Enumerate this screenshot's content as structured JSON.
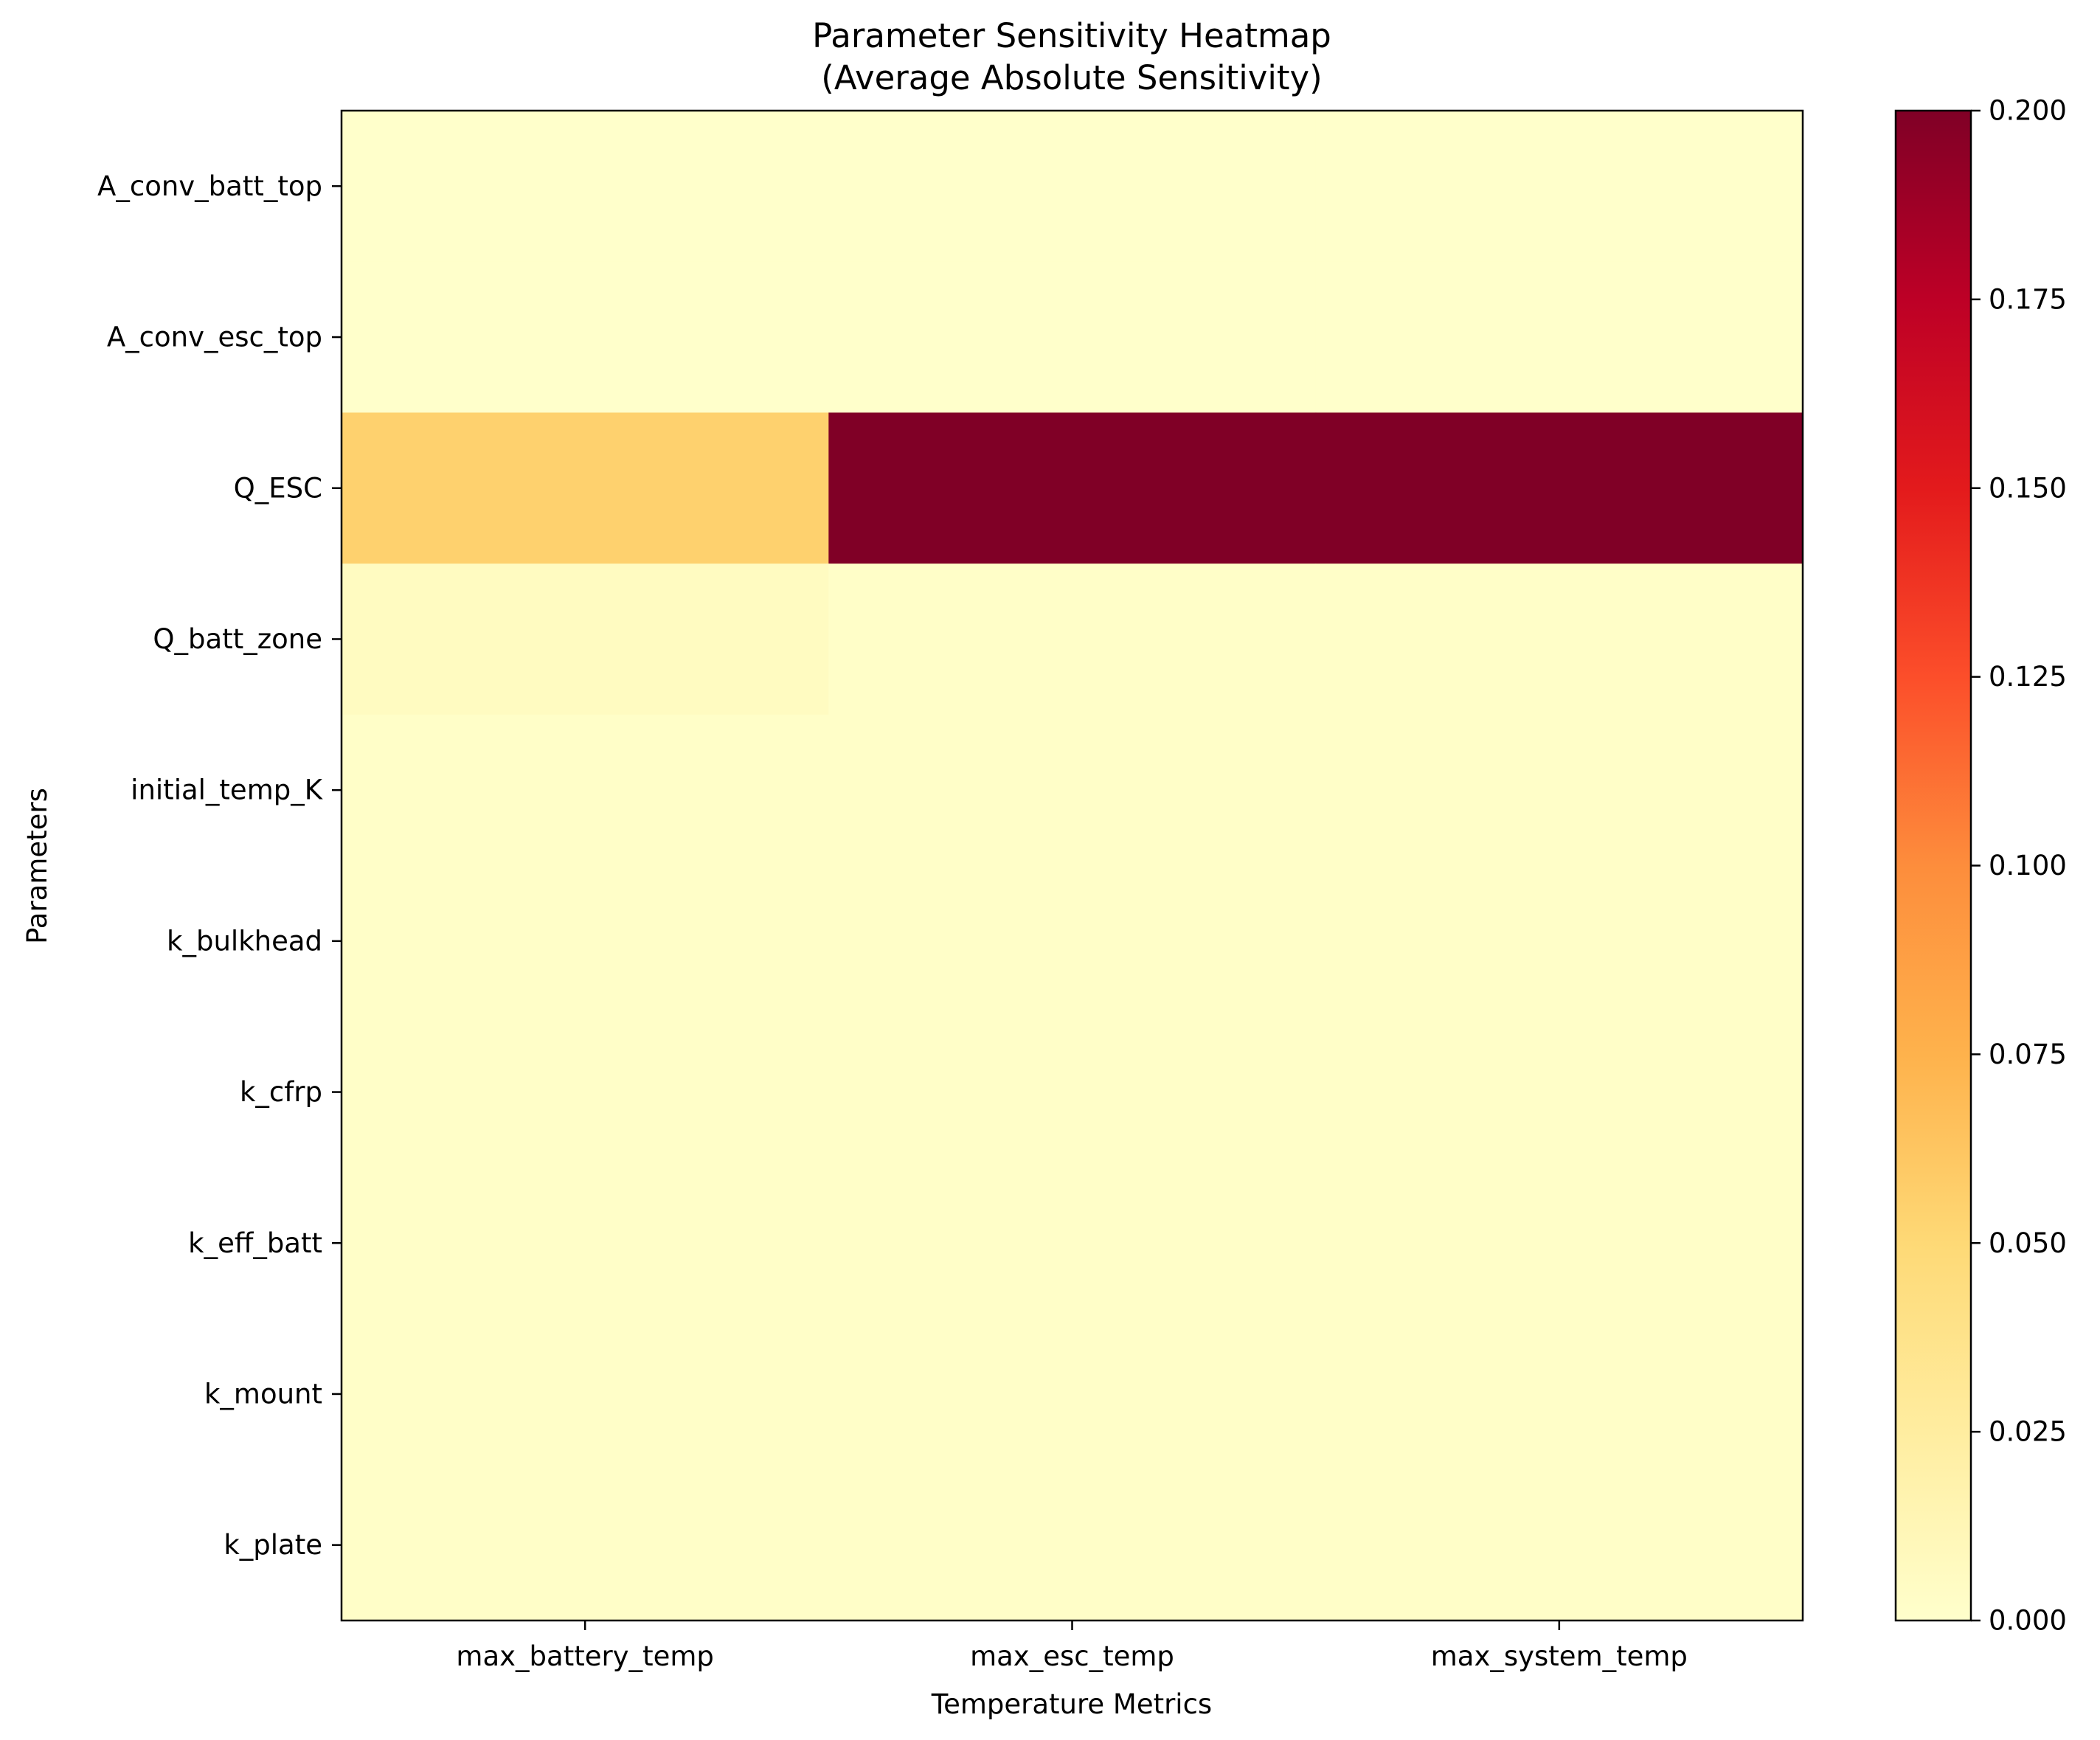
{
  "chart_data": {
    "type": "heatmap",
    "title": "Parameter Sensitivity Heatmap",
    "subtitle": "(Average Absolute Sensitivity)",
    "xlabel": "Temperature Metrics",
    "ylabel": "Parameters",
    "columns": [
      "max_battery_temp",
      "max_esc_temp",
      "max_system_temp"
    ],
    "rows": [
      "A_conv_batt_top",
      "A_conv_esc_top",
      "Q_ESC",
      "Q_batt_zone",
      "initial_temp_K",
      "k_bulkhead",
      "k_cfrp",
      "k_eff_batt",
      "k_mount",
      "k_plate"
    ],
    "values": [
      [
        0.0005,
        0.0003,
        0.0003
      ],
      [
        0.0004,
        0.0003,
        0.0003
      ],
      [
        0.055,
        0.2,
        0.2
      ],
      [
        0.006,
        0.002,
        0.002
      ],
      [
        0.002,
        0.002,
        0.002
      ],
      [
        0.002,
        0.002,
        0.002
      ],
      [
        0.002,
        0.002,
        0.002
      ],
      [
        0.002,
        0.002,
        0.002
      ],
      [
        0.002,
        0.002,
        0.002
      ],
      [
        0.002,
        0.002,
        0.002
      ]
    ],
    "colormap": "YlOrRd",
    "color_range": [
      0.0,
      0.2
    ],
    "colorbar_ticks": [
      "0.000",
      "0.025",
      "0.050",
      "0.075",
      "0.100",
      "0.125",
      "0.150",
      "0.175",
      "0.200"
    ],
    "grid": false
  }
}
